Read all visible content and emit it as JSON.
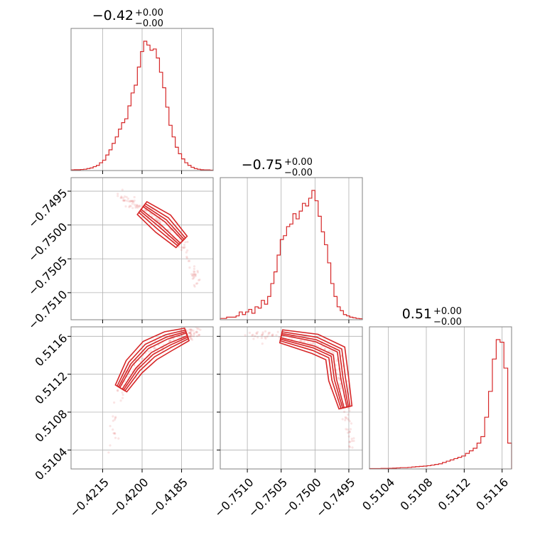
{
  "chart_data": {
    "type": "corner",
    "color": "#d62728",
    "parameters": [
      {
        "title": "−0.42",
        "err_plus": "+0.00",
        "err_minus": "−0.00",
        "range": [
          -0.4227,
          -0.4173
        ],
        "ticks": [
          -0.4215,
          -0.42,
          -0.4185
        ],
        "tick_labels": [
          "−0.4215",
          "−0.4200",
          "−0.4185"
        ],
        "center": -0.41935,
        "hist": [
          0.5,
          0.6,
          0.6,
          0.8,
          1,
          1.5,
          2,
          3,
          4,
          6,
          8,
          12,
          16,
          21,
          26,
          32,
          37,
          40,
          50,
          60,
          66,
          80,
          92,
          100,
          97,
          93,
          94,
          87,
          76,
          64,
          49,
          35,
          26,
          18,
          13,
          9,
          6,
          4,
          2.5,
          1.5,
          1,
          0.6,
          0.5,
          0.5,
          0.3
        ]
      },
      {
        "title": "−0.75",
        "err_plus": "+0.00",
        "err_minus": "−0.00",
        "range": [
          -0.7514,
          -0.7493
        ],
        "ticks": [
          -0.751,
          -0.7505,
          -0.75,
          -0.7495
        ],
        "tick_labels": [
          "−0.7510",
          "−0.7505",
          "−0.7500",
          "−0.7495"
        ],
        "center": -0.75005,
        "hist": [
          1,
          1,
          2,
          2,
          2,
          3,
          6,
          4,
          6,
          8,
          5,
          10,
          9,
          15,
          12,
          18,
          28,
          37,
          50,
          62,
          65,
          72,
          74,
          82,
          78,
          84,
          90,
          88,
          94,
          100,
          92,
          80,
          68,
          58,
          44,
          28,
          18,
          10,
          7,
          4,
          3,
          2,
          1.5,
          1,
          0.8
        ]
      },
      {
        "title": "0.51",
        "err_plus": "+0.00",
        "err_minus": "−0.00",
        "range": [
          0.5102,
          0.5117
        ],
        "ticks": [
          0.5104,
          0.5108,
          0.5112,
          0.5116
        ],
        "tick_labels": [
          "0.5104",
          "0.5108",
          "0.5112",
          "0.5116"
        ],
        "center": 0.51152,
        "hist": [
          0.3,
          0.3,
          0.3,
          0.4,
          0.4,
          0.5,
          0.6,
          0.8,
          1,
          1,
          1.2,
          1.5,
          1.8,
          2,
          2.2,
          2.5,
          3,
          3.5,
          4,
          5,
          6,
          7,
          8,
          9,
          10,
          12,
          14,
          16,
          20,
          25,
          40,
          60,
          85,
          100,
          98,
          78,
          20
        ]
      }
    ],
    "pairs": [
      {
        "row": 1,
        "col": 0,
        "curve": [
          [
            -0.4209,
            -0.74955
          ],
          [
            -0.42,
            -0.74975
          ],
          [
            -0.4192,
            -0.74998
          ],
          [
            -0.4185,
            -0.75025
          ],
          [
            -0.4178,
            -0.7509
          ]
        ]
      },
      {
        "row": 2,
        "col": 0,
        "curve": [
          [
            -0.4212,
            0.5104
          ],
          [
            -0.4208,
            0.51105
          ],
          [
            -0.4203,
            0.51128
          ],
          [
            -0.4197,
            0.51145
          ],
          [
            -0.419,
            0.51155
          ],
          [
            -0.4183,
            0.51162
          ],
          [
            -0.4179,
            0.51164
          ]
        ]
      },
      {
        "row": 2,
        "col": 1,
        "curve": [
          [
            -0.751,
            0.51162
          ],
          [
            -0.7505,
            0.5116
          ],
          [
            -0.75,
            0.51152
          ],
          [
            -0.7497,
            0.51142
          ],
          [
            -0.74965,
            0.51115
          ],
          [
            -0.74955,
            0.51085
          ],
          [
            -0.74945,
            0.5104
          ]
        ]
      }
    ]
  }
}
